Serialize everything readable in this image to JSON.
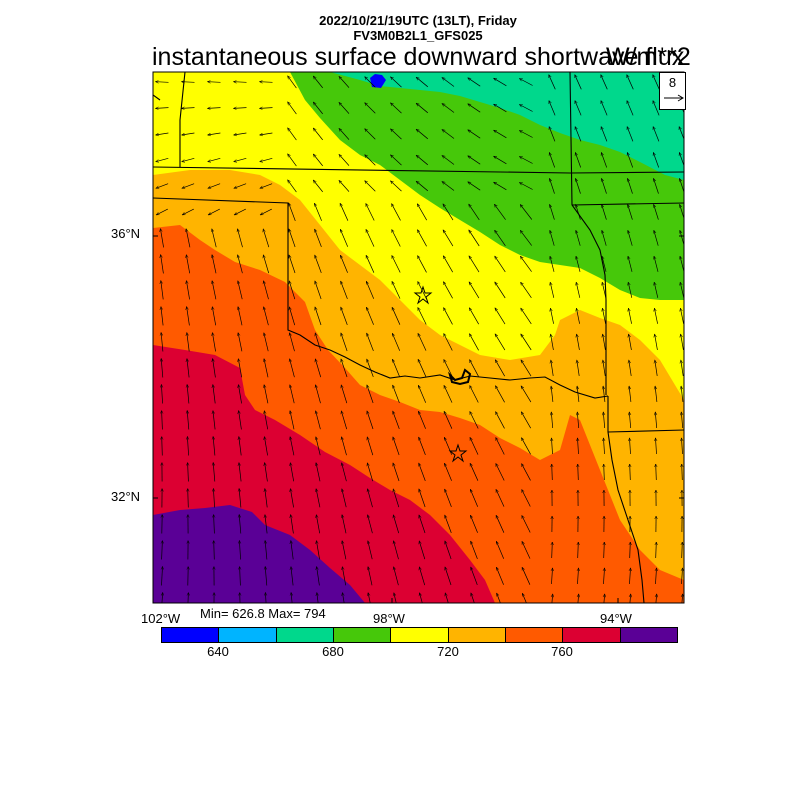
{
  "header": {
    "line1": "2022/10/21/19UTC (13LT), Friday",
    "line2": "FV3M0B2L1_GFS025"
  },
  "title": "instantaneous surface downward shortwave flux",
  "units": "W/m**2",
  "lat_labels": [
    "36°N",
    "32°N"
  ],
  "lon_labels": [
    "102°W",
    "98°W",
    "94°W"
  ],
  "stats_text": "Min= 626.8 Max= 794",
  "vector_reference": "8",
  "colorbar": {
    "colors": [
      "#0000ff",
      "#00b4ff",
      "#00d88c",
      "#46c80a",
      "#ffff00",
      "#ffb400",
      "#ff5a00",
      "#dc0032",
      "#5a0096"
    ],
    "tick_labels": [
      "640",
      "680",
      "720",
      "760"
    ]
  },
  "chart_data": {
    "type": "heatmap",
    "title": "instantaneous surface downward shortwave flux",
    "units": "W/m**2",
    "levels": [
      620,
      640,
      660,
      680,
      700,
      720,
      740,
      760,
      780
    ],
    "min": 626.8,
    "max": 794,
    "lat_ticks": [
      "36°N",
      "32°N"
    ],
    "lon_ticks": [
      "102°W",
      "98°W",
      "94°W"
    ],
    "vector_reference_magnitude": 8
  }
}
